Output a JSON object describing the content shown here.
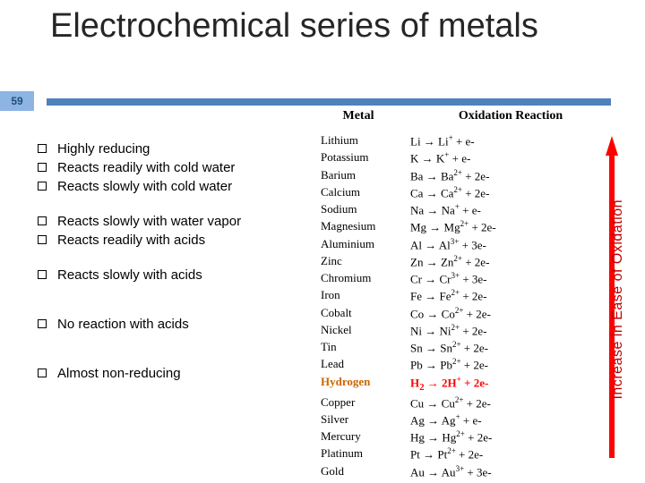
{
  "slide": {
    "number": "59",
    "title": "Electrochemical series of metals"
  },
  "colors": {
    "slidebox_bg": "#8db4e2",
    "underline": "#4f81bd",
    "arrow_fill": "#ff0000",
    "arrow_text": "#c00000",
    "hydrogen_label": "#cc6600",
    "hydrogen_reaction": "#ff0000"
  },
  "headers": {
    "metal": "Metal",
    "reaction": "Oxidation Reaction"
  },
  "bullets": [
    {
      "text": "Highly reducing",
      "gap": ""
    },
    {
      "text": "Reacts readily with cold water",
      "gap": ""
    },
    {
      "text": "Reacts slowly with cold water",
      "gap": ""
    },
    {
      "text": "Reacts slowly with water vapor",
      "gap": "gap"
    },
    {
      "text": "Reacts readily with acids",
      "gap": ""
    },
    {
      "text": "Reacts slowly with acids",
      "gap": "gap"
    },
    {
      "text": "No reaction with acids",
      "gap": "gap2"
    },
    {
      "text": "Almost non-reducing",
      "gap": "gap2"
    }
  ],
  "table": [
    {
      "metal": "Lithium",
      "r": "Li → Li<sup>+</sup> + e-"
    },
    {
      "metal": "Potassium",
      "r": "K → K<sup>+</sup> + e-"
    },
    {
      "metal": "Barium",
      "r": "Ba → Ba<sup>2+</sup> + 2e-"
    },
    {
      "metal": "Calcium",
      "r": "Ca → Ca<sup>2+</sup> + 2e-"
    },
    {
      "metal": "Sodium",
      "r": "Na → Na<sup>+</sup> + e-"
    },
    {
      "metal": "Magnesium",
      "r": "Mg → Mg<sup>2+</sup> + 2e-"
    },
    {
      "metal": "Aluminium",
      "r": "Al → Al<sup>3+</sup> + 3e-"
    },
    {
      "metal": "Zinc",
      "r": "Zn → Zn<sup>2+</sup> + 2e-"
    },
    {
      "metal": "Chromium",
      "r": "Cr → Cr<sup>3+</sup> + 3e-"
    },
    {
      "metal": "Iron",
      "r": "Fe → Fe<sup>2+</sup> + 2e-"
    },
    {
      "metal": "Cobalt",
      "r": "Co → Co<sup>2+</sup> + 2e-"
    },
    {
      "metal": "Nickel",
      "r": "Ni → Ni<sup>2+</sup> + 2e-"
    },
    {
      "metal": "Tin",
      "r": "Sn → Sn<sup>2+</sup> + 2e-"
    },
    {
      "metal": "Lead",
      "r": "Pb → Pb<sup>2+</sup> + 2e-"
    },
    {
      "metal": "Hydrogen",
      "r": "H<sub>2</sub> → 2H<sup>+</sup> + 2e-",
      "hyd": true
    },
    {
      "metal": "Copper",
      "r": "Cu → Cu<sup>2+</sup> + 2e-"
    },
    {
      "metal": "Silver",
      "r": "Ag → Ag<sup>+</sup> + e-"
    },
    {
      "metal": "Mercury",
      "r": "Hg → Hg<sup>2+</sup> + 2e-"
    },
    {
      "metal": "Platinum",
      "r": "Pt → Pt<sup>2+</sup> + 2e-"
    },
    {
      "metal": "Gold",
      "r": "Au → Au<sup>3+</sup> + 3e-"
    }
  ],
  "arrow": {
    "label": "Increase in Ease of Oxidation"
  }
}
